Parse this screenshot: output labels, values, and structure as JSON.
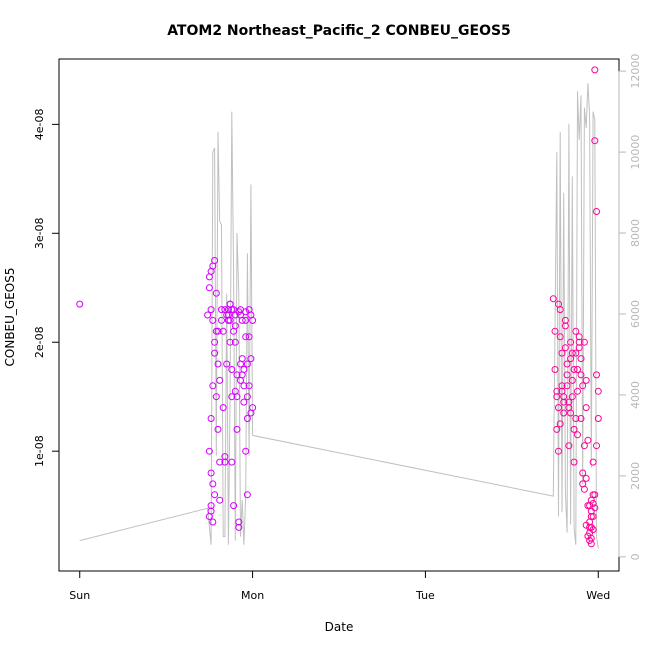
{
  "chart_data": {
    "type": "scatter",
    "title": "ATOM2 Northeast_Pacific_2 CONBEU_GEOS5",
    "xlabel": "Date",
    "ylabel": "CONBEU_GEOS5",
    "x_tick_labels": [
      "Sun",
      "Mon",
      "Tue",
      "Wed"
    ],
    "x_ticks_days": [
      0,
      1,
      2,
      3
    ],
    "xlim_days": [
      -0.12,
      3.12
    ],
    "y_ticks": [
      1e-08,
      2e-08,
      3e-08,
      4e-08
    ],
    "y_tick_labels": [
      "1e-08",
      "2e-08",
      "3e-08",
      "4e-08"
    ],
    "ylim": [
      -1e-09,
      4.6e-08
    ],
    "y2_ticks": [
      0,
      2000,
      4000,
      6000,
      8000,
      10000,
      12000
    ],
    "y2_tick_labels": [
      "0",
      "2000",
      "4000",
      "6000",
      "8000",
      "10000",
      "12000"
    ],
    "y2lim": [
      -350,
      12300
    ],
    "colors": {
      "points_early": "#d400ff",
      "points_late": "#ff0099",
      "altitude_line": "#c0c0c0",
      "right_axis": "#b8b8b8",
      "frame": "#000000"
    },
    "altitude_series": {
      "x_days": [
        0.0,
        0.74,
        0.76,
        0.77,
        0.78,
        0.79,
        0.8,
        0.81,
        0.82,
        0.83,
        0.84,
        0.85,
        0.86,
        0.87,
        0.88,
        0.89,
        0.9,
        0.91,
        0.92,
        0.93,
        0.94,
        0.95,
        0.96,
        0.97,
        0.98,
        0.99,
        1.0,
        2.74,
        2.76,
        2.77,
        2.78,
        2.79,
        2.8,
        2.81,
        2.82,
        2.83,
        2.84,
        2.85,
        2.86,
        2.87,
        2.88,
        2.89,
        2.9,
        2.91,
        2.92,
        2.93,
        2.94,
        2.95,
        2.96,
        2.97,
        2.98,
        2.99,
        3.0
      ],
      "values": [
        400,
        1200,
        300,
        10000,
        10100,
        2500,
        10500,
        8300,
        8200,
        500,
        500,
        6500,
        300,
        4000,
        11000,
        7000,
        400,
        8000,
        6500,
        500,
        1400,
        300,
        1500,
        7500,
        2500,
        9200,
        3000,
        1500,
        10000,
        1000,
        10500,
        1100,
        9000,
        1600,
        600,
        10700,
        800,
        9400,
        700,
        300,
        11500,
        10300,
        11400,
        1800,
        11100,
        10600,
        11700,
        10900,
        2200,
        11000,
        10800,
        500,
        200
      ]
    },
    "series": [
      {
        "x": [
          0.0,
          0.74,
          0.75,
          0.75,
          0.76,
          0.77,
          0.76,
          0.77,
          0.78,
          0.78,
          0.77,
          0.76,
          0.75,
          0.76,
          0.77,
          0.76,
          0.75,
          0.76,
          0.77,
          0.78,
          0.79,
          0.79,
          0.8,
          0.8,
          0.81,
          0.81,
          0.82,
          0.82,
          0.83,
          0.83,
          0.84,
          0.84,
          0.85,
          0.86,
          0.86,
          0.87,
          0.87,
          0.87,
          0.88,
          0.88,
          0.88,
          0.89,
          0.89,
          0.9,
          0.9,
          0.9,
          0.91,
          0.91,
          0.92,
          0.92,
          0.93,
          0.93,
          0.94,
          0.94,
          0.95,
          0.95,
          0.96,
          0.96,
          0.97,
          0.97,
          0.97,
          0.98,
          0.98,
          0.99,
          0.99,
          1.0,
          1.0,
          0.84,
          0.85,
          0.86,
          0.87,
          0.88,
          0.91,
          0.93,
          0.95,
          0.96,
          0.97,
          0.98,
          0.86,
          0.89,
          0.92,
          0.94,
          0.78,
          0.79,
          0.8,
          0.81,
          0.9,
          0.93,
          0.96,
          0.99
        ],
        "values": [
          2.35e-08,
          2.25e-08,
          2.5e-08,
          2.6e-08,
          2.65e-08,
          2.7e-08,
          2.3e-08,
          2.2e-08,
          1.9e-08,
          2e-08,
          1.6e-08,
          1.3e-08,
          1e-08,
          8e-09,
          7e-09,
          5e-09,
          4e-09,
          4.5e-09,
          3.5e-09,
          6e-09,
          1.5e-08,
          2.1e-08,
          1.8e-08,
          1.2e-08,
          9e-09,
          5.5e-09,
          2.2e-08,
          2.3e-08,
          2.1e-08,
          1.4e-08,
          9.5e-09,
          9e-09,
          1.8e-08,
          2.25e-08,
          2.3e-08,
          2.35e-08,
          2.2e-08,
          2e-08,
          1.5e-08,
          1.75e-08,
          9e-09,
          5e-09,
          2.3e-08,
          2.25e-08,
          2.15e-08,
          2e-08,
          1.7e-08,
          1.2e-08,
          3.5e-09,
          3e-09,
          2.3e-08,
          2.25e-08,
          2.2e-08,
          1.85e-08,
          1.6e-08,
          1.45e-08,
          2.28e-08,
          2.2e-08,
          1.8e-08,
          1.5e-08,
          1.3e-08,
          2.3e-08,
          2.05e-08,
          2.25e-08,
          1.85e-08,
          2.2e-08,
          1.4e-08,
          2.3e-08,
          2.25e-08,
          2.2e-08,
          2.35e-08,
          2.3e-08,
          1.5e-08,
          1.65e-08,
          1.75e-08,
          1e-08,
          6e-09,
          1.6e-08,
          2.2e-08,
          2.1e-08,
          2.28e-08,
          1.7e-08,
          2.75e-08,
          2.45e-08,
          2.1e-08,
          1.65e-08,
          1.55e-08,
          1.8e-08,
          2.05e-08,
          1.35e-08
        ]
      },
      {
        "x": [
          2.74,
          2.75,
          2.75,
          2.76,
          2.76,
          2.77,
          2.77,
          2.78,
          2.78,
          2.79,
          2.79,
          2.8,
          2.8,
          2.81,
          2.81,
          2.82,
          2.82,
          2.83,
          2.83,
          2.84,
          2.84,
          2.85,
          2.85,
          2.86,
          2.86,
          2.87,
          2.87,
          2.88,
          2.88,
          2.89,
          2.89,
          2.9,
          2.9,
          2.91,
          2.91,
          2.92,
          2.92,
          2.93,
          2.93,
          2.94,
          2.94,
          2.95,
          2.95,
          2.96,
          2.96,
          2.97,
          2.97,
          2.98,
          2.98,
          2.99,
          2.99,
          3.0,
          3.0,
          2.95,
          2.96,
          2.97,
          2.95,
          2.96,
          2.97,
          2.96,
          2.97,
          2.98,
          2.95,
          2.96,
          2.94,
          2.93,
          2.76,
          2.77,
          2.78,
          2.79,
          2.8,
          2.81,
          2.82,
          2.83,
          2.84,
          2.85,
          2.86,
          2.87,
          2.88,
          2.89,
          2.9,
          2.91,
          2.92,
          2.93,
          2.98,
          2.99
        ],
        "values": [
          2.4e-08,
          2.1e-08,
          1.75e-08,
          1.5e-08,
          1.2e-08,
          1e-08,
          2.35e-08,
          2.3e-08,
          2.05e-08,
          1.9e-08,
          1.55e-08,
          1.45e-08,
          1.35e-08,
          2.15e-08,
          1.95e-08,
          1.8e-08,
          1.6e-08,
          1.4e-08,
          1.05e-08,
          2e-08,
          1.85e-08,
          1.65e-08,
          1.5e-08,
          1.2e-08,
          9e-09,
          2.1e-08,
          1.9e-08,
          1.75e-08,
          1.55e-08,
          2.05e-08,
          2e-08,
          1.7e-08,
          1.3e-08,
          8e-09,
          7e-09,
          6.5e-09,
          2e-08,
          1.65e-08,
          1.4e-08,
          1.1e-08,
          5e-09,
          3e-09,
          2.5e-09,
          2e-09,
          4e-09,
          6e-09,
          9e-09,
          4.5e-08,
          3.85e-08,
          3.2e-08,
          1.7e-08,
          1.55e-08,
          1.3e-08,
          5e-09,
          4.5e-09,
          4e-09,
          3.5e-09,
          3e-09,
          2.8e-09,
          5.5e-09,
          5.2e-09,
          4.8e-09,
          1.8e-09,
          1.5e-09,
          2.2e-09,
          3.2e-09,
          1.55e-08,
          1.4e-08,
          1.25e-08,
          1.6e-08,
          1.5e-08,
          2.2e-08,
          1.7e-08,
          1.45e-08,
          1.35e-08,
          1.9e-08,
          1.75e-08,
          1.3e-08,
          1.15e-08,
          1.95e-08,
          1.85e-08,
          1.6e-08,
          1.05e-08,
          7.5e-09,
          6e-09,
          1.05e-08
        ]
      }
    ]
  }
}
